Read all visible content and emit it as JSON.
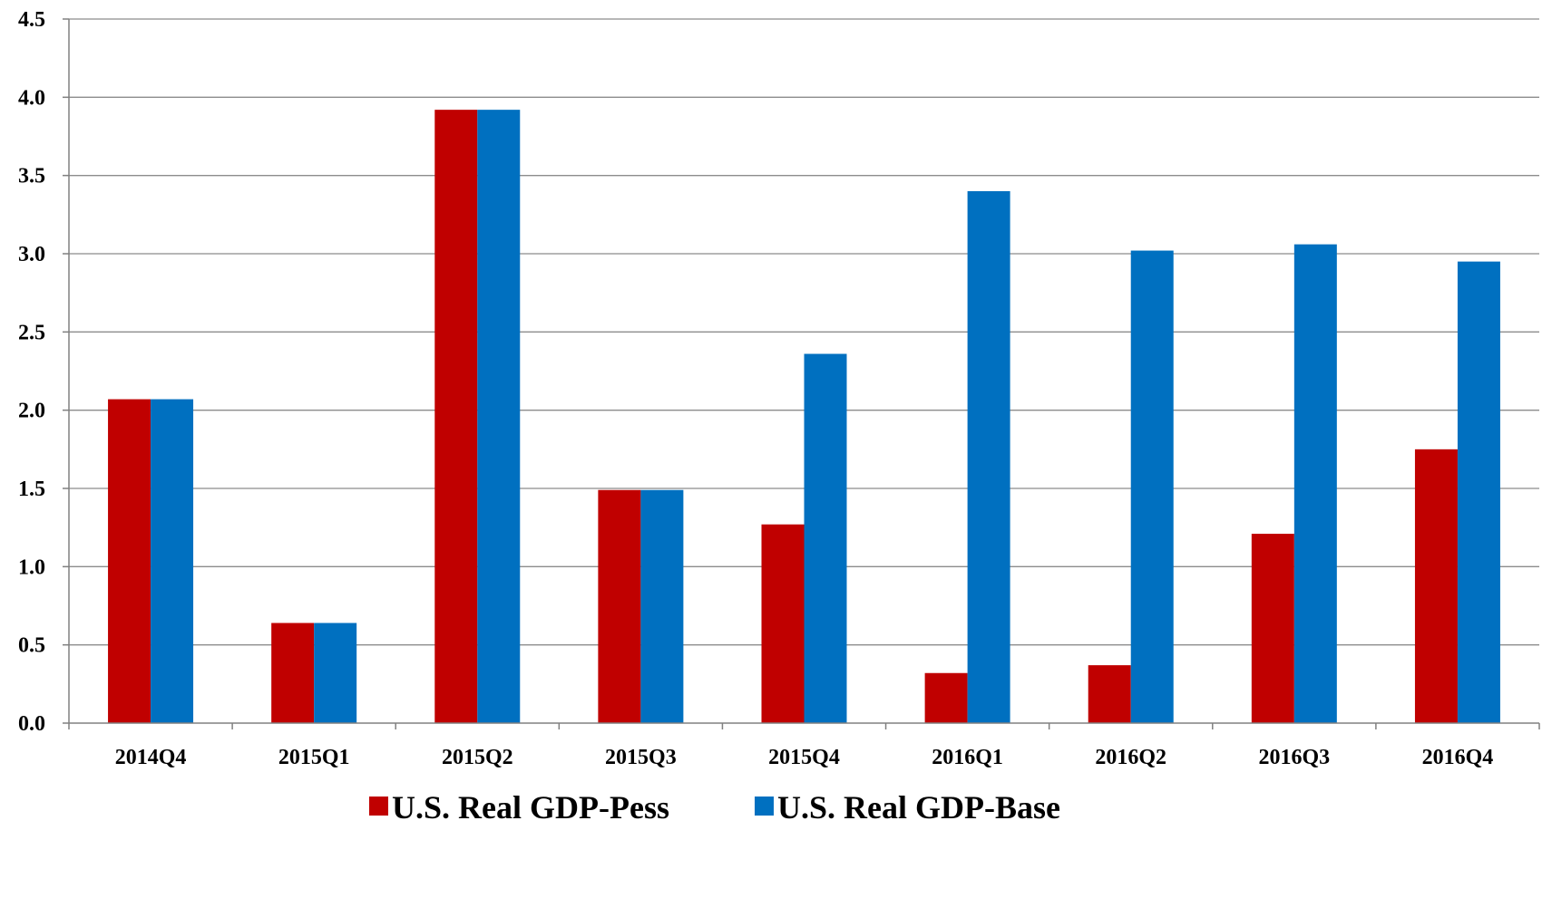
{
  "chart_data": {
    "type": "bar",
    "categories": [
      "2014Q4",
      "2015Q1",
      "2015Q2",
      "2015Q3",
      "2015Q4",
      "2016Q1",
      "2016Q2",
      "2016Q3",
      "2016Q4"
    ],
    "series": [
      {
        "name": "U.S. Real GDP-Pess",
        "color": "#C00000",
        "values": [
          2.07,
          0.64,
          3.92,
          1.49,
          1.27,
          0.32,
          0.37,
          1.21,
          1.75
        ]
      },
      {
        "name": "U.S. Real GDP-Base",
        "color": "#0070C0",
        "values": [
          2.07,
          0.64,
          3.92,
          1.49,
          2.36,
          3.4,
          3.02,
          3.06,
          2.95
        ]
      }
    ],
    "yticks": [
      "0.0",
      "0.5",
      "1.0",
      "1.5",
      "2.0",
      "2.5",
      "3.0",
      "3.5",
      "4.0",
      "4.5"
    ],
    "ylim": [
      0,
      4.5
    ],
    "title": "",
    "xlabel": "",
    "ylabel": "",
    "grid": true,
    "legend_position": "bottom"
  }
}
